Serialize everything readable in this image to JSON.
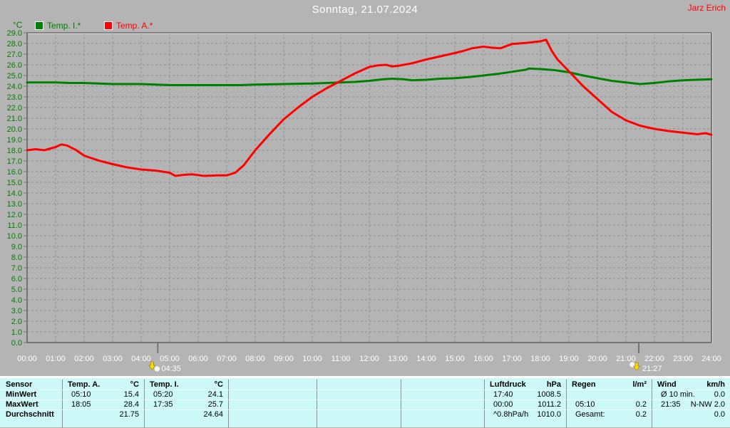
{
  "header": {
    "title": "Sonntag, 21.07.2024",
    "author": "Jarz Erich"
  },
  "legend": {
    "series": [
      {
        "label": "Temp. I.*",
        "color": "#008000"
      },
      {
        "label": "Temp. A.*",
        "color": "#ff0000"
      }
    ]
  },
  "colors": {
    "background": "#b4b4b4",
    "grid": "#8e8e8e",
    "axis": "#757575",
    "y_labels": "#007d00",
    "x_labels": "#ffffff",
    "table_bg": "#ccf8f8",
    "temp_i": "#008000",
    "temp_a": "#ff0000",
    "title_text": "#ffffff",
    "author_text": "#ff0000"
  },
  "chart_data": {
    "type": "line",
    "title": "Sonntag, 21.07.2024",
    "xlabel": "",
    "ylabel": "°C",
    "ylim": [
      0,
      29
    ],
    "y_tick_step": 1.0,
    "xlim": [
      0,
      24
    ],
    "grid": true,
    "legend_position": "top-left",
    "x_ticks": [
      "00:00",
      "01:00",
      "02:00",
      "03:00",
      "04:00",
      "05:00",
      "06:00",
      "07:00",
      "08:00",
      "09:00",
      "10:00",
      "11:00",
      "12:00",
      "13:00",
      "14:00",
      "15:00",
      "16:00",
      "17:00",
      "18:00",
      "19:00",
      "20:00",
      "21:00",
      "22:00",
      "23:00",
      "24:00"
    ],
    "series": [
      {
        "name": "Temp. I.*",
        "color": "#008000",
        "points": [
          [
            0,
            24.35
          ],
          [
            1,
            24.35
          ],
          [
            1.5,
            24.3
          ],
          [
            2,
            24.3
          ],
          [
            2.5,
            24.25
          ],
          [
            3,
            24.2
          ],
          [
            4,
            24.2
          ],
          [
            4.5,
            24.15
          ],
          [
            5,
            24.1
          ],
          [
            6,
            24.1
          ],
          [
            7,
            24.1
          ],
          [
            7.5,
            24.1
          ],
          [
            8,
            24.15
          ],
          [
            9,
            24.2
          ],
          [
            10,
            24.25
          ],
          [
            10.5,
            24.3
          ],
          [
            11,
            24.35
          ],
          [
            11.5,
            24.4
          ],
          [
            12,
            24.5
          ],
          [
            12.5,
            24.65
          ],
          [
            12.8,
            24.7
          ],
          [
            13.2,
            24.65
          ],
          [
            13.5,
            24.55
          ],
          [
            14,
            24.6
          ],
          [
            14.5,
            24.7
          ],
          [
            15,
            24.75
          ],
          [
            15.5,
            24.85
          ],
          [
            16,
            25.0
          ],
          [
            16.5,
            25.15
          ],
          [
            17,
            25.35
          ],
          [
            17.5,
            25.55
          ],
          [
            17.6,
            25.65
          ],
          [
            18,
            25.6
          ],
          [
            18.5,
            25.5
          ],
          [
            19,
            25.3
          ],
          [
            19.5,
            25.0
          ],
          [
            20,
            24.75
          ],
          [
            20.5,
            24.5
          ],
          [
            21,
            24.35
          ],
          [
            21.5,
            24.2
          ],
          [
            22,
            24.3
          ],
          [
            22.5,
            24.45
          ],
          [
            23,
            24.55
          ],
          [
            23.5,
            24.6
          ],
          [
            24,
            24.65
          ]
        ]
      },
      {
        "name": "Temp. A.*",
        "color": "#ff0000",
        "points": [
          [
            0,
            18.0
          ],
          [
            0.3,
            18.1
          ],
          [
            0.6,
            18.0
          ],
          [
            1,
            18.3
          ],
          [
            1.2,
            18.55
          ],
          [
            1.4,
            18.45
          ],
          [
            1.7,
            18.05
          ],
          [
            2,
            17.5
          ],
          [
            2.5,
            17.05
          ],
          [
            3,
            16.7
          ],
          [
            3.5,
            16.4
          ],
          [
            4,
            16.2
          ],
          [
            4.5,
            16.1
          ],
          [
            5,
            15.9
          ],
          [
            5.2,
            15.6
          ],
          [
            5.5,
            15.7
          ],
          [
            5.8,
            15.75
          ],
          [
            6.2,
            15.6
          ],
          [
            6.7,
            15.65
          ],
          [
            7,
            15.65
          ],
          [
            7.3,
            15.9
          ],
          [
            7.6,
            16.6
          ],
          [
            8,
            18.0
          ],
          [
            8.5,
            19.5
          ],
          [
            9,
            20.9
          ],
          [
            9.5,
            22.0
          ],
          [
            10,
            23.0
          ],
          [
            10.5,
            23.8
          ],
          [
            11,
            24.5
          ],
          [
            11.5,
            25.2
          ],
          [
            12,
            25.8
          ],
          [
            12.3,
            25.95
          ],
          [
            12.6,
            26.0
          ],
          [
            12.8,
            25.85
          ],
          [
            13,
            25.9
          ],
          [
            13.5,
            26.15
          ],
          [
            14,
            26.5
          ],
          [
            14.5,
            26.8
          ],
          [
            15,
            27.1
          ],
          [
            15.3,
            27.3
          ],
          [
            15.6,
            27.55
          ],
          [
            16,
            27.7
          ],
          [
            16.3,
            27.6
          ],
          [
            16.6,
            27.55
          ],
          [
            16.8,
            27.75
          ],
          [
            17,
            27.95
          ],
          [
            17.5,
            28.05
          ],
          [
            18,
            28.2
          ],
          [
            18.2,
            28.35
          ],
          [
            18.4,
            27.3
          ],
          [
            18.6,
            26.5
          ],
          [
            19,
            25.4
          ],
          [
            19.5,
            24.0
          ],
          [
            20,
            22.8
          ],
          [
            20.5,
            21.6
          ],
          [
            21,
            20.8
          ],
          [
            21.5,
            20.3
          ],
          [
            22,
            20.0
          ],
          [
            22.5,
            19.8
          ],
          [
            23,
            19.65
          ],
          [
            23.5,
            19.5
          ],
          [
            23.8,
            19.6
          ],
          [
            24,
            19.45
          ]
        ]
      }
    ],
    "markers": [
      {
        "name": "sunrise",
        "label": "04:35",
        "hour": 4.583
      },
      {
        "name": "sunset",
        "label": "21:27",
        "hour": 21.45
      }
    ]
  },
  "table": {
    "row_labels": [
      "Sensor",
      "MinWert",
      "MaxWert",
      "Durchschnitt"
    ],
    "columns": [
      {
        "header": "Temp. A.",
        "unit": "°C",
        "rows": [
          [
            "05:10",
            "15.4"
          ],
          [
            "18:05",
            "28.4"
          ],
          [
            "",
            "21.75"
          ]
        ]
      },
      {
        "header": "Temp. I.",
        "unit": "°C",
        "rows": [
          [
            "05:20",
            "24.1"
          ],
          [
            "17:35",
            "25.7"
          ],
          [
            "",
            "24.64"
          ]
        ]
      },
      {
        "header": "",
        "unit": "",
        "rows": [
          [
            "",
            ""
          ],
          [
            "",
            ""
          ],
          [
            "",
            ""
          ]
        ]
      },
      {
        "header": "",
        "unit": "",
        "rows": [
          [
            "",
            ""
          ],
          [
            "",
            ""
          ],
          [
            "",
            ""
          ]
        ]
      },
      {
        "header": "",
        "unit": "",
        "rows": [
          [
            "",
            ""
          ],
          [
            "",
            ""
          ],
          [
            "",
            ""
          ]
        ]
      },
      {
        "header": "Luftdruck",
        "unit": "hPa",
        "rows": [
          [
            "17:40",
            "1008.5"
          ],
          [
            "00:00",
            "1011.2"
          ],
          [
            "^0.8hPa/h",
            "1010.0"
          ]
        ]
      },
      {
        "header": "Regen",
        "unit": "l/m²",
        "rows": [
          [
            "",
            ""
          ],
          [
            "05:10",
            "0.2"
          ],
          [
            "Gesamt:",
            "0.2"
          ]
        ]
      },
      {
        "header": "Wind",
        "unit": "km/h",
        "rows": [
          [
            "Ø 10 min.",
            "0.0"
          ],
          [
            "21:35",
            "N-NW 2.0"
          ],
          [
            "",
            "0.0"
          ]
        ]
      }
    ]
  }
}
